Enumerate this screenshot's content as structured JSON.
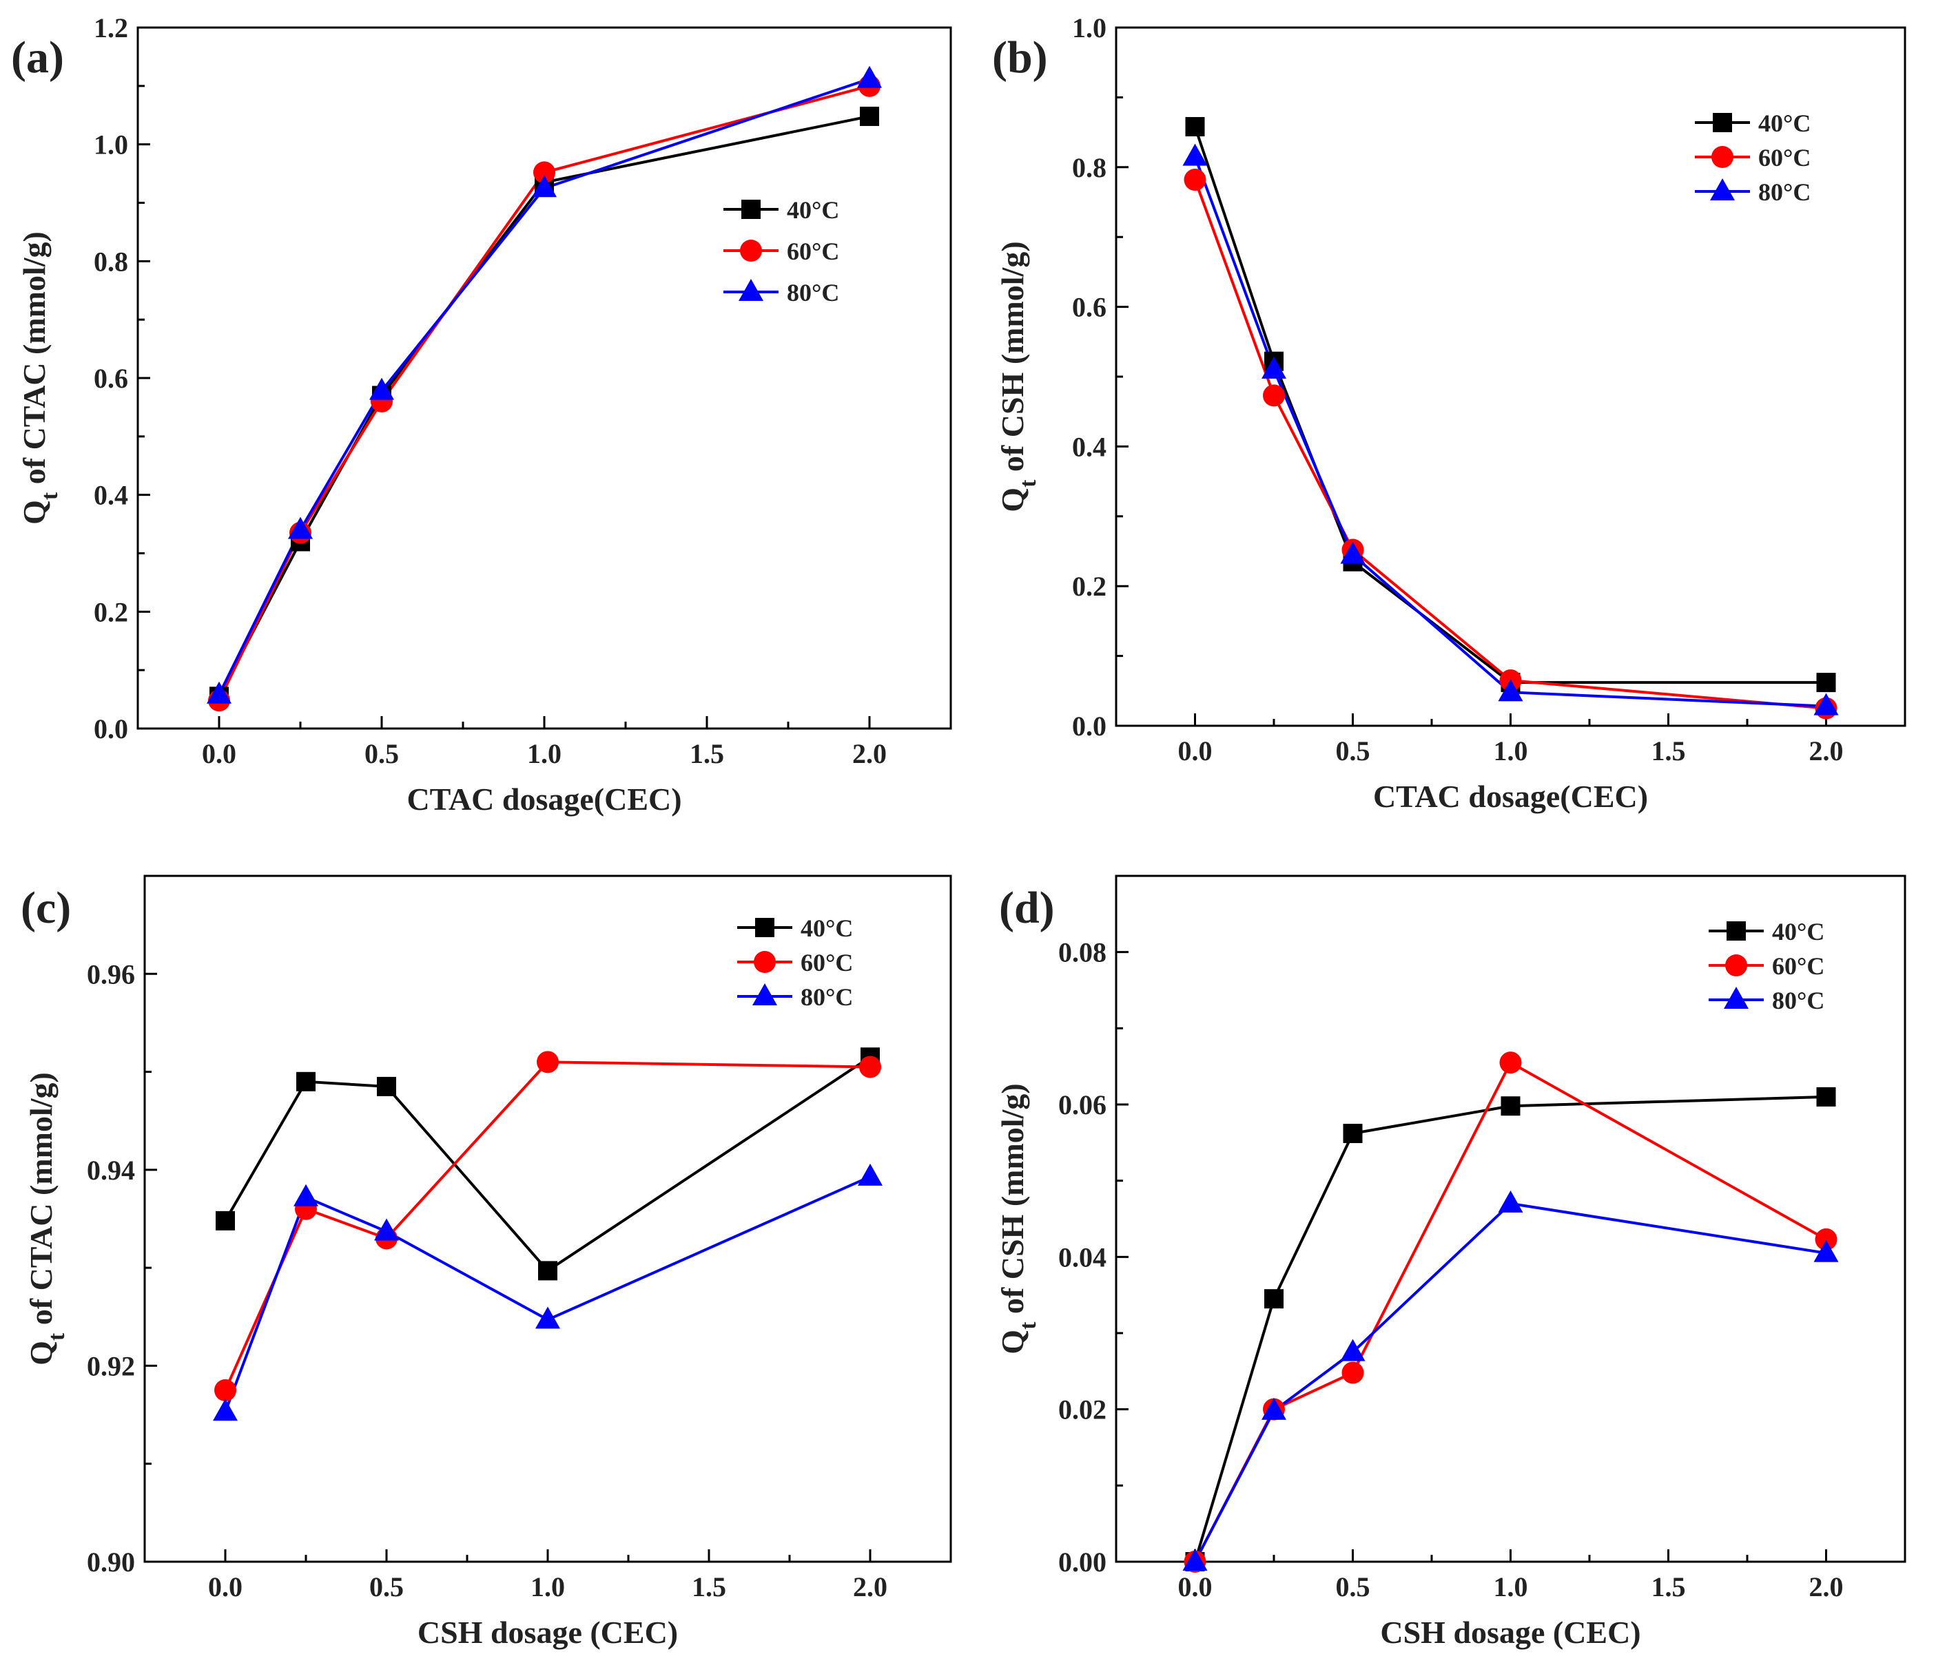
{
  "series_styles": [
    {
      "name": "40°C",
      "color": "#000000",
      "marker": "square"
    },
    {
      "name": "60°C",
      "color": "#ff0000",
      "marker": "circle"
    },
    {
      "name": "80°C",
      "color": "#0000ff",
      "marker": "triangle"
    }
  ],
  "chart_data": [
    {
      "type": "line",
      "panel_label": "(a)",
      "title": "",
      "xlabel": "CTAC dosage(CEC)",
      "ylabel_main": "Q",
      "ylabel_sub": "t",
      "ylabel_rest": " of CTAC (mmol/g)",
      "xlim": [
        -0.25,
        2.25
      ],
      "ylim": [
        0,
        1.2
      ],
      "xticks": [
        0.0,
        0.5,
        1.0,
        1.5,
        2.0
      ],
      "xtick_labels": [
        "0.0",
        "0.5",
        "1.0",
        "1.5",
        "2.0"
      ],
      "yticks": [
        0.0,
        0.2,
        0.4,
        0.6,
        0.8,
        1.0,
        1.2
      ],
      "ytick_labels": [
        "0.0",
        "0.2",
        "0.4",
        "0.6",
        "0.8",
        "1.0",
        "1.2"
      ],
      "legend_position": "middle-right",
      "x": [
        0,
        0.25,
        0.5,
        1.0,
        2.0
      ],
      "series": [
        {
          "name": "40°C",
          "values": [
            0.055,
            0.32,
            0.57,
            0.935,
            1.048
          ]
        },
        {
          "name": "60°C",
          "values": [
            0.048,
            0.335,
            0.56,
            0.952,
            1.1
          ]
        },
        {
          "name": "80°C",
          "values": [
            0.058,
            0.34,
            0.578,
            0.925,
            1.112
          ]
        }
      ]
    },
    {
      "type": "line",
      "panel_label": "(b)",
      "title": "",
      "xlabel": "CTAC dosage(CEC)",
      "ylabel_main": "Q",
      "ylabel_sub": "t",
      "ylabel_rest": " of CSH (mmol/g)",
      "xlim": [
        -0.25,
        2.25
      ],
      "ylim": [
        0,
        1.0
      ],
      "xticks": [
        0.0,
        0.5,
        1.0,
        1.5,
        2.0
      ],
      "xtick_labels": [
        "0.0",
        "0.5",
        "1.0",
        "1.5",
        "2.0"
      ],
      "yticks": [
        0.0,
        0.2,
        0.4,
        0.6,
        0.8,
        1.0
      ],
      "ytick_labels": [
        "0.0",
        "0.2",
        "0.4",
        "0.6",
        "0.8",
        "1.0"
      ],
      "legend_position": "top-right",
      "x": [
        0,
        0.25,
        0.5,
        1.0,
        2.0
      ],
      "series": [
        {
          "name": "40°C",
          "values": [
            0.858,
            0.522,
            0.235,
            0.062,
            0.062
          ]
        },
        {
          "name": "60°C",
          "values": [
            0.782,
            0.473,
            0.252,
            0.065,
            0.025
          ]
        },
        {
          "name": "80°C",
          "values": [
            0.815,
            0.51,
            0.245,
            0.048,
            0.028
          ]
        }
      ]
    },
    {
      "type": "line",
      "panel_label": "(c)",
      "title": "",
      "xlabel": "CSH dosage (CEC)",
      "ylabel_main": "Q",
      "ylabel_sub": "t",
      "ylabel_rest": " of CTAC (mmol/g)",
      "xlim": [
        -0.25,
        2.25
      ],
      "ylim": [
        0.9,
        0.97
      ],
      "xticks": [
        0.0,
        0.5,
        1.0,
        1.5,
        2.0
      ],
      "xtick_labels": [
        "0.0",
        "0.5",
        "1.0",
        "1.5",
        "2.0"
      ],
      "yticks": [
        0.9,
        0.92,
        0.94,
        0.96
      ],
      "ytick_labels": [
        "0.90",
        "0.92",
        "0.94",
        "0.96"
      ],
      "legend_position": "top-right",
      "x": [
        0,
        0.25,
        0.5,
        1.0,
        2.0
      ],
      "series": [
        {
          "name": "40°C",
          "values": [
            0.9348,
            0.949,
            0.9485,
            0.9297,
            0.9515
          ]
        },
        {
          "name": "60°C",
          "values": [
            0.9175,
            0.936,
            0.933,
            0.951,
            0.9505
          ]
        },
        {
          "name": "80°C",
          "values": [
            0.9153,
            0.9372,
            0.9337,
            0.9247,
            0.9393
          ]
        }
      ]
    },
    {
      "type": "line",
      "panel_label": "(d)",
      "title": "",
      "xlabel": "CSH dosage (CEC)",
      "ylabel_main": "Q",
      "ylabel_sub": "t",
      "ylabel_rest": " of CSH (mmol/g)",
      "xlim": [
        -0.25,
        2.25
      ],
      "ylim": [
        0.0,
        0.09
      ],
      "xticks": [
        0.0,
        0.5,
        1.0,
        1.5,
        2.0
      ],
      "xtick_labels": [
        "0.0",
        "0.5",
        "1.0",
        "1.5",
        "2.0"
      ],
      "yticks": [
        0.0,
        0.02,
        0.04,
        0.06,
        0.08
      ],
      "ytick_labels": [
        "0.00",
        "0.02",
        "0.04",
        "0.06",
        "0.08"
      ],
      "legend_position": "top-right",
      "x": [
        0,
        0.25,
        0.5,
        1.0,
        2.0
      ],
      "series": [
        {
          "name": "40°C",
          "values": [
            0.0,
            0.0345,
            0.0562,
            0.0598,
            0.061
          ]
        },
        {
          "name": "60°C",
          "values": [
            0.0,
            0.02,
            0.0248,
            0.0655,
            0.0423
          ]
        },
        {
          "name": "80°C",
          "values": [
            0.0,
            0.0198,
            0.0275,
            0.047,
            0.0405
          ]
        }
      ]
    }
  ]
}
